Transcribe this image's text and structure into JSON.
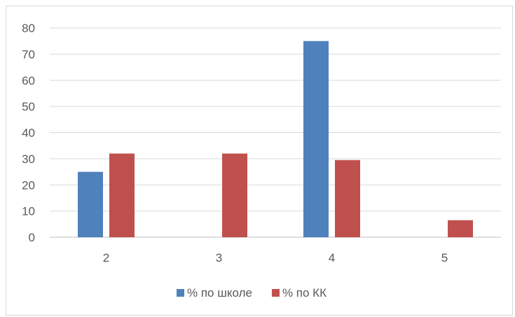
{
  "chart_data": {
    "type": "bar",
    "categories": [
      "2",
      "3",
      "4",
      "5"
    ],
    "series": [
      {
        "name": "% по школе",
        "values": [
          25,
          0,
          75,
          0
        ],
        "color": "#4f81bd"
      },
      {
        "name": "% по КК",
        "values": [
          32,
          32,
          29.5,
          6.5
        ],
        "color": "#c0504d"
      }
    ],
    "y_ticks": [
      0,
      10,
      20,
      30,
      40,
      50,
      60,
      70,
      80
    ],
    "ylim": [
      0,
      80
    ],
    "grid": true,
    "legend_position": "bottom"
  }
}
